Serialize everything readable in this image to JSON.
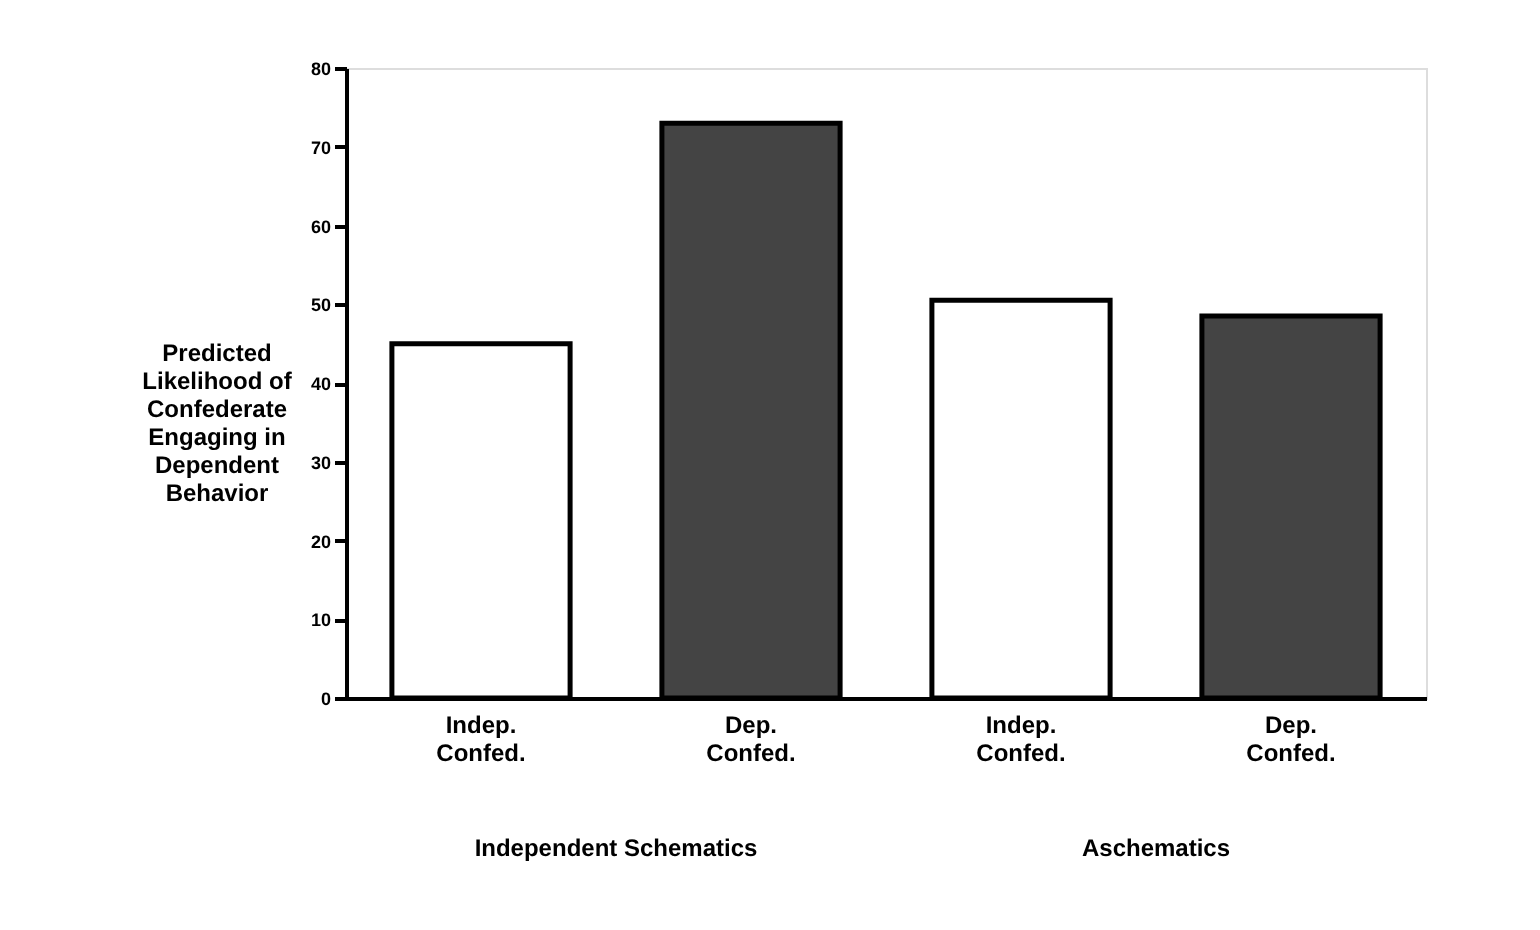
{
  "chart_data": {
    "type": "bar",
    "ylabel": "Predicted\nLikelihood of\nConfederate\nEngaging in\nDependent\nBehavior",
    "categories": [
      "Indep.\nConfed.",
      "Dep.\nConfed.",
      "Indep.\nConfed.",
      "Dep.\nConfed."
    ],
    "values": [
      45,
      73,
      50.5,
      48.5
    ],
    "colors": [
      "#ffffff",
      "#444444",
      "#ffffff",
      "#444444"
    ],
    "ylim": [
      0,
      80
    ],
    "yticks": [
      0,
      10,
      20,
      30,
      40,
      50,
      60,
      70,
      80
    ],
    "annotations": [
      "Independent  Schematics",
      "Aschematics"
    ],
    "grid": false
  }
}
